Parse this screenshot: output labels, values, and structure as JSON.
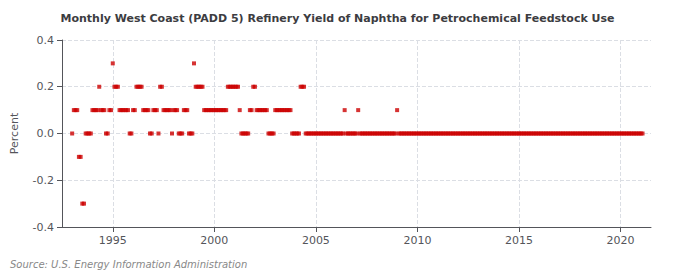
{
  "chart_data": {
    "type": "scatter",
    "title": "Monthly West Coast (PADD 5) Refinery Yield of Naphtha for Petrochemical Feedstock Use",
    "ylabel": "Percent",
    "annotations": [
      "Source: U.S. Energy Information Administration"
    ],
    "color": "#cc0000",
    "marker": "square",
    "grid": true,
    "xlim": [
      1992.5,
      2021.5
    ],
    "xticks": [
      1995,
      2000,
      2005,
      2010,
      2015,
      2020
    ],
    "ylim": [
      -0.4,
      0.4
    ],
    "yticks": [
      -0.4,
      -0.2,
      {
        "value": 0.0,
        "label": "0.0"
      },
      0.2,
      0.4
    ],
    "x": [
      1993.0,
      1993.083,
      1993.167,
      1993.25,
      1993.333,
      1993.417,
      1993.5,
      1993.583,
      1993.667,
      1993.75,
      1993.833,
      1993.917,
      1994.0,
      1994.083,
      1994.167,
      1994.25,
      1994.333,
      1994.417,
      1994.5,
      1994.583,
      1994.667,
      1994.75,
      1994.833,
      1994.917,
      1995.0,
      1995.083,
      1995.167,
      1995.25,
      1995.333,
      1995.417,
      1995.5,
      1995.583,
      1995.667,
      1995.75,
      1995.833,
      1995.917,
      1996.0,
      1996.083,
      1996.167,
      1996.25,
      1996.333,
      1996.417,
      1996.5,
      1996.583,
      1996.667,
      1996.75,
      1996.833,
      1996.917,
      1997.0,
      1997.083,
      1997.167,
      1997.25,
      1997.333,
      1997.417,
      1997.5,
      1997.583,
      1997.667,
      1997.75,
      1997.833,
      1997.917,
      1998.0,
      1998.083,
      1998.167,
      1998.25,
      1998.333,
      1998.417,
      1998.5,
      1998.583,
      1998.667,
      1998.75,
      1998.833,
      1998.917,
      1999.0,
      1999.083,
      1999.167,
      1999.25,
      1999.333,
      1999.417,
      1999.5,
      1999.583,
      1999.667,
      1999.75,
      1999.833,
      1999.917,
      2000.0,
      2000.083,
      2000.167,
      2000.25,
      2000.333,
      2000.417,
      2000.5,
      2000.583,
      2000.667,
      2000.75,
      2000.833,
      2000.917,
      2001.0,
      2001.083,
      2001.167,
      2001.25,
      2001.333,
      2001.417,
      2001.5,
      2001.583,
      2001.667,
      2001.75,
      2001.833,
      2001.917,
      2002.0,
      2002.083,
      2002.167,
      2002.25,
      2002.333,
      2002.417,
      2002.5,
      2002.583,
      2002.667,
      2002.75,
      2002.833,
      2002.917,
      2003.0,
      2003.083,
      2003.167,
      2003.25,
      2003.333,
      2003.417,
      2003.5,
      2003.583,
      2003.667,
      2003.75,
      2003.833,
      2003.917,
      2004.0,
      2004.083,
      2004.167,
      2004.25,
      2004.333,
      2004.417,
      2004.5,
      2004.583,
      2004.667,
      2004.75,
      2004.833,
      2004.917,
      2005.0,
      2005.083,
      2005.167,
      2005.25,
      2005.333,
      2005.417,
      2005.5,
      2005.583,
      2005.667,
      2005.75,
      2005.833,
      2005.917,
      2006.0,
      2006.083,
      2006.167,
      2006.25,
      2006.333,
      2006.417,
      2006.5,
      2006.583,
      2006.667,
      2006.75,
      2006.833,
      2006.917,
      2007.0,
      2007.083,
      2007.167,
      2007.25,
      2007.333,
      2007.417,
      2007.5,
      2007.583,
      2007.667,
      2007.75,
      2007.833,
      2007.917,
      2008.0,
      2008.083,
      2008.167,
      2008.25,
      2008.333,
      2008.417,
      2008.5,
      2008.583,
      2008.667,
      2008.75,
      2008.833,
      2008.917,
      2009.0,
      2009.083,
      2009.167,
      2009.25,
      2009.333,
      2009.417,
      2009.5,
      2009.583,
      2009.667,
      2009.75,
      2009.833,
      2009.917,
      2010.0,
      2010.083,
      2010.167,
      2010.25,
      2010.333,
      2010.417,
      2010.5,
      2010.583,
      2010.667,
      2010.75,
      2010.833,
      2010.917,
      2011.0,
      2011.083,
      2011.167,
      2011.25,
      2011.333,
      2011.417,
      2011.5,
      2011.583,
      2011.667,
      2011.75,
      2011.833,
      2011.917,
      2012.0,
      2012.083,
      2012.167,
      2012.25,
      2012.333,
      2012.417,
      2012.5,
      2012.583,
      2012.667,
      2012.75,
      2012.833,
      2012.917,
      2013.0,
      2013.083,
      2013.167,
      2013.25,
      2013.333,
      2013.417,
      2013.5,
      2013.583,
      2013.667,
      2013.75,
      2013.833,
      2013.917,
      2014.0,
      2014.083,
      2014.167,
      2014.25,
      2014.333,
      2014.417,
      2014.5,
      2014.583,
      2014.667,
      2014.75,
      2014.833,
      2014.917,
      2015.0,
      2015.083,
      2015.167,
      2015.25,
      2015.333,
      2015.417,
      2015.5,
      2015.583,
      2015.667,
      2015.75,
      2015.833,
      2015.917,
      2016.0,
      2016.083,
      2016.167,
      2016.25,
      2016.333,
      2016.417,
      2016.5,
      2016.583,
      2016.667,
      2016.75,
      2016.833,
      2016.917,
      2017.0,
      2017.083,
      2017.167,
      2017.25,
      2017.333,
      2017.417,
      2017.5,
      2017.583,
      2017.667,
      2017.75,
      2017.833,
      2017.917,
      2018.0,
      2018.083,
      2018.167,
      2018.25,
      2018.333,
      2018.417,
      2018.5,
      2018.583,
      2018.667,
      2018.75,
      2018.833,
      2018.917,
      2019.0,
      2019.083,
      2019.167,
      2019.25,
      2019.333,
      2019.417,
      2019.5,
      2019.583,
      2019.667,
      2019.75,
      2019.833,
      2019.917,
      2020.0,
      2020.083,
      2020.167,
      2020.25,
      2020.333,
      2020.417,
      2020.5,
      2020.583,
      2020.667,
      2020.75,
      2020.833,
      2020.917,
      2021.0,
      2021.083
    ],
    "values": [
      0.0,
      0.1,
      0.1,
      0.1,
      -0.1,
      -0.1,
      -0.3,
      -0.3,
      0.0,
      0.0,
      0.0,
      0.0,
      0.1,
      0.1,
      0.1,
      0.1,
      0.2,
      0.1,
      0.1,
      0.1,
      0.0,
      0.0,
      0.1,
      0.1,
      0.3,
      0.2,
      0.2,
      0.2,
      0.1,
      0.1,
      0.1,
      0.1,
      0.1,
      0.1,
      0.0,
      0.0,
      0.1,
      0.1,
      0.2,
      0.2,
      0.2,
      0.2,
      0.1,
      0.1,
      0.1,
      0.1,
      0.0,
      0.0,
      0.1,
      0.1,
      0.1,
      0.0,
      0.2,
      0.2,
      0.1,
      0.1,
      0.1,
      0.1,
      0.1,
      0.0,
      0.1,
      0.1,
      0.1,
      0.0,
      0.0,
      0.0,
      0.1,
      0.1,
      0.1,
      0.0,
      0.0,
      0.0,
      0.3,
      0.2,
      0.2,
      0.2,
      0.2,
      0.2,
      0.1,
      0.1,
      0.1,
      0.1,
      0.1,
      0.1,
      0.1,
      0.1,
      0.1,
      0.1,
      0.1,
      0.1,
      0.1,
      0.1,
      0.2,
      0.2,
      0.2,
      0.2,
      0.2,
      0.2,
      0.2,
      0.1,
      0.0,
      0.0,
      0.0,
      0.0,
      0.0,
      0.1,
      0.1,
      0.2,
      0.2,
      0.1,
      0.1,
      0.1,
      0.1,
      0.1,
      0.1,
      0.1,
      0.0,
      0.0,
      0.0,
      0.0,
      0.1,
      0.1,
      0.1,
      0.1,
      0.1,
      0.1,
      0.1,
      0.1,
      0.1,
      0.1,
      0.0,
      0.0,
      0.0,
      0.0,
      0.0,
      0.2,
      0.2,
      0.2,
      0.0,
      0.0,
      0.0,
      0.0,
      0.0,
      0.0,
      0.0,
      0.0,
      0.0,
      0.0,
      0.0,
      0.0,
      0.0,
      0.0,
      0.0,
      0.0,
      0.0,
      0.0,
      0.0,
      0.0,
      0.0,
      0.0,
      0.0,
      0.1,
      0.0,
      0.0,
      0.0,
      0.0,
      0.0,
      0.0,
      0.0,
      0.1,
      0.0,
      0.0,
      0.0,
      0.0,
      0.0,
      0.0,
      0.0,
      0.0,
      0.0,
      0.0,
      0.0,
      0.0,
      0.0,
      0.0,
      0.0,
      0.0,
      0.0,
      0.0,
      0.0,
      0.0,
      0.0,
      0.0,
      0.1,
      0.0,
      0.0,
      0.0,
      0.0,
      0.0,
      0.0,
      0.0,
      0.0,
      0.0,
      0.0,
      0.0,
      0.0,
      0.0,
      0.0,
      0.0,
      0.0,
      0.0,
      0.0,
      0.0,
      0.0,
      0.0,
      0.0,
      0.0,
      0.0,
      0.0,
      0.0,
      0.0,
      0.0,
      0.0,
      0.0,
      0.0,
      0.0,
      0.0,
      0.0,
      0.0,
      0.0,
      0.0,
      0.0,
      0.0,
      0.0,
      0.0,
      0.0,
      0.0,
      0.0,
      0.0,
      0.0,
      0.0,
      0.0,
      0.0,
      0.0,
      0.0,
      0.0,
      0.0,
      0.0,
      0.0,
      0.0,
      0.0,
      0.0,
      0.0,
      0.0,
      0.0,
      0.0,
      0.0,
      0.0,
      0.0,
      0.0,
      0.0,
      0.0,
      0.0,
      0.0,
      0.0,
      0.0,
      0.0,
      0.0,
      0.0,
      0.0,
      0.0,
      0.0,
      0.0,
      0.0,
      0.0,
      0.0,
      0.0,
      0.0,
      0.0,
      0.0,
      0.0,
      0.0,
      0.0,
      0.0,
      0.0,
      0.0,
      0.0,
      0.0,
      0.0,
      0.0,
      0.0,
      0.0,
      0.0,
      0.0,
      0.0,
      0.0,
      0.0,
      0.0,
      0.0,
      0.0,
      0.0,
      0.0,
      0.0,
      0.0,
      0.0,
      0.0,
      0.0,
      0.0,
      0.0,
      0.0,
      0.0,
      0.0,
      0.0,
      0.0,
      0.0,
      0.0,
      0.0,
      0.0,
      0.0,
      0.0,
      0.0,
      0.0,
      0.0,
      0.0,
      0.0,
      0.0,
      0.0,
      0.0,
      0.0,
      0.0,
      0.0,
      0.0,
      0.0,
      0.0,
      0.0,
      0.0,
      0.0,
      0.0,
      0.0
    ]
  }
}
